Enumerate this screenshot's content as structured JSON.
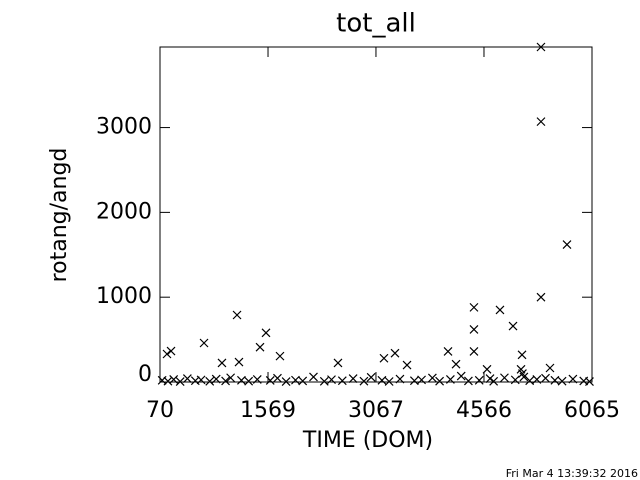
{
  "chart_data": {
    "type": "scatter",
    "title": "tot_all",
    "x_label": "TIME (DOM)",
    "y_label": "rotang/angd",
    "footer": "Fri Mar  4 13:39:32 2016",
    "color": "#000000",
    "xlim": [
      70,
      6065
    ],
    "ylim": [
      0,
      3950
    ],
    "xticks": [
      70,
      1569,
      3067,
      4566,
      6065
    ],
    "yticks": [
      0,
      1000,
      2000,
      3000
    ],
    "x": [
      5357,
      5357,
      5357,
      5718,
      4427,
      4427,
      4427,
      4788,
      4969,
      5094,
      1139,
      1541,
      681,
      223,
      167,
      1458,
      1735,
      1166,
      930,
      2540,
      3178,
      3331,
      3498,
      4067,
      4178,
      5482,
      4608,
      100,
      180,
      260,
      350,
      450,
      560,
      640,
      760,
      850,
      980,
      1050,
      1200,
      1300,
      1420,
      1600,
      1700,
      1820,
      1950,
      2050,
      2200,
      2350,
      2450,
      2600,
      2750,
      2900,
      3000,
      3150,
      3250,
      3400,
      3600,
      3700,
      3850,
      3950,
      4100,
      4250,
      4350,
      4500,
      4650,
      4700,
      4850,
      5000,
      5080,
      5100,
      5120,
      5200,
      5300,
      5420,
      5550,
      5650,
      5800,
      5950,
      6030
    ],
    "values": [
      3950,
      3070,
      1000,
      1620,
      880,
      620,
      360,
      850,
      660,
      320,
      790,
      580,
      460,
      365,
      330,
      410,
      305,
      235,
      225,
      225,
      280,
      340,
      200,
      360,
      210,
      165,
      150,
      20,
      10,
      30,
      5,
      40,
      15,
      25,
      8,
      35,
      12,
      50,
      20,
      10,
      30,
      18,
      45,
      5,
      22,
      12,
      60,
      8,
      28,
      15,
      40,
      10,
      55,
      20,
      6,
      35,
      15,
      25,
      48,
      10,
      30,
      70,
      12,
      20,
      40,
      8,
      50,
      25,
      150,
      100,
      60,
      15,
      30,
      45,
      20,
      10,
      35,
      12,
      5
    ]
  }
}
